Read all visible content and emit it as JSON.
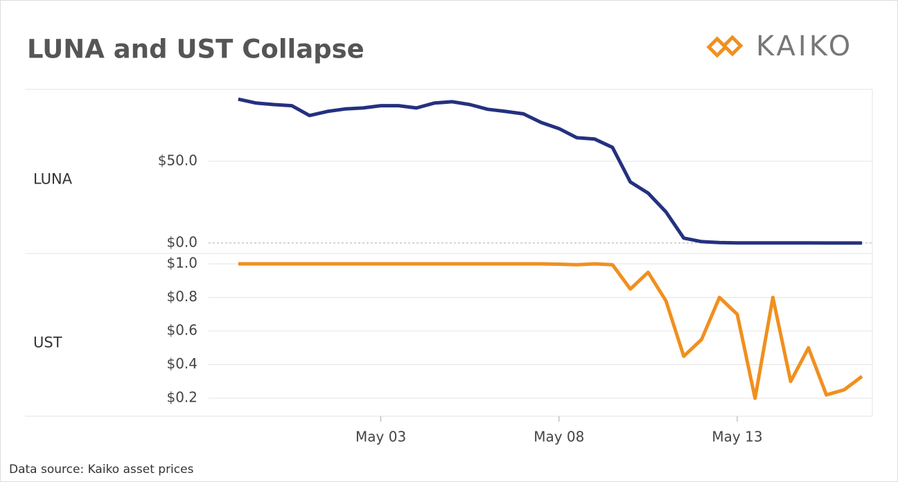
{
  "title": "LUNA and UST Collapse",
  "logo": "KAIKO",
  "source": "Data source: Kaiko asset prices",
  "chart_data": [
    {
      "type": "line",
      "title": "LUNA",
      "x": [
        "04-29T00:00",
        "04-29T12:00",
        "04-30T00:00",
        "04-30T12:00",
        "05-01T00:00",
        "05-01T12:00",
        "05-02T00:00",
        "05-02T12:00",
        "05-03T00:00",
        "05-03T12:00",
        "05-04T00:00",
        "05-04T12:00",
        "05-05T00:00",
        "05-05T12:00",
        "05-06T00:00",
        "05-06T12:00",
        "05-07T00:00",
        "05-07T12:00",
        "05-08T00:00",
        "05-08T12:00",
        "05-09T00:00",
        "05-09T12:00",
        "05-10T00:00",
        "05-10T12:00",
        "05-11T00:00",
        "05-11T12:00",
        "05-12T00:00",
        "05-12T12:00",
        "05-13T00:00",
        "05-13T12:00",
        "05-14T00:00",
        "05-14T12:00",
        "05-15T00:00",
        "05-15T12:00",
        "05-16T00:00",
        "05-16T12:00"
      ],
      "series": [
        {
          "name": "LUNA",
          "color": "#24317f",
          "values": [
            88,
            85.6,
            84.7,
            84,
            78,
            80.5,
            82,
            82.6,
            84,
            84,
            82.6,
            85.6,
            86.4,
            84.7,
            81.8,
            80.5,
            79,
            73.7,
            70,
            64.4,
            63.6,
            58.5,
            37.3,
            30.5,
            19,
            3,
            0.85,
            0.3,
            0.1,
            0.05,
            0.03,
            0.02,
            0.02,
            0.01,
            0.01,
            0.01
          ]
        }
      ],
      "xlim": [
        "04-28T04:00",
        "05-16T19:00"
      ],
      "ylim": [
        -6.4,
        94
      ],
      "yticks": [
        {
          "value": 0,
          "label": "$0.0"
        },
        {
          "value": 50,
          "label": "$50.0"
        }
      ],
      "grid": true
    },
    {
      "type": "line",
      "title": "UST",
      "x": [
        "04-29T00:00",
        "04-29T12:00",
        "04-30T00:00",
        "04-30T12:00",
        "05-01T00:00",
        "05-01T12:00",
        "05-02T00:00",
        "05-02T12:00",
        "05-03T00:00",
        "05-03T12:00",
        "05-04T00:00",
        "05-04T12:00",
        "05-05T00:00",
        "05-05T12:00",
        "05-06T00:00",
        "05-06T12:00",
        "05-07T00:00",
        "05-07T12:00",
        "05-08T00:00",
        "05-08T12:00",
        "05-09T00:00",
        "05-09T12:00",
        "05-10T00:00",
        "05-10T12:00",
        "05-11T00:00",
        "05-11T12:00",
        "05-12T00:00",
        "05-12T12:00",
        "05-13T00:00",
        "05-13T12:00",
        "05-14T00:00",
        "05-14T12:00",
        "05-15T00:00",
        "05-15T12:00",
        "05-16T00:00",
        "05-16T12:00"
      ],
      "series": [
        {
          "name": "UST",
          "color": "#f0901e",
          "values": [
            1,
            1,
            1,
            1,
            1,
            1,
            1,
            1,
            1,
            1,
            1,
            1,
            1,
            1,
            1,
            1,
            1,
            1,
            0.998,
            0.995,
            1,
            0.995,
            0.85,
            0.95,
            0.78,
            0.45,
            0.55,
            0.8,
            0.7,
            0.2,
            0.8,
            0.3,
            0.5,
            0.22,
            0.25,
            0.33
          ]
        }
      ],
      "xlim": [
        "04-28T04:00",
        "05-16T19:00"
      ],
      "ylim": [
        0.093,
        1.062
      ],
      "yticks": [
        {
          "value": 0.2,
          "label": "$0.2"
        },
        {
          "value": 0.4,
          "label": "$0.4"
        },
        {
          "value": 0.6,
          "label": "$0.6"
        },
        {
          "value": 0.8,
          "label": "$0.8"
        },
        {
          "value": 1,
          "label": "$1.0"
        }
      ],
      "xticks": [
        {
          "value": "05-03T00:00",
          "label": "May 03"
        },
        {
          "value": "05-08T00:00",
          "label": "May 08"
        },
        {
          "value": "05-13T00:00",
          "label": "May 13"
        }
      ],
      "grid": true
    }
  ]
}
